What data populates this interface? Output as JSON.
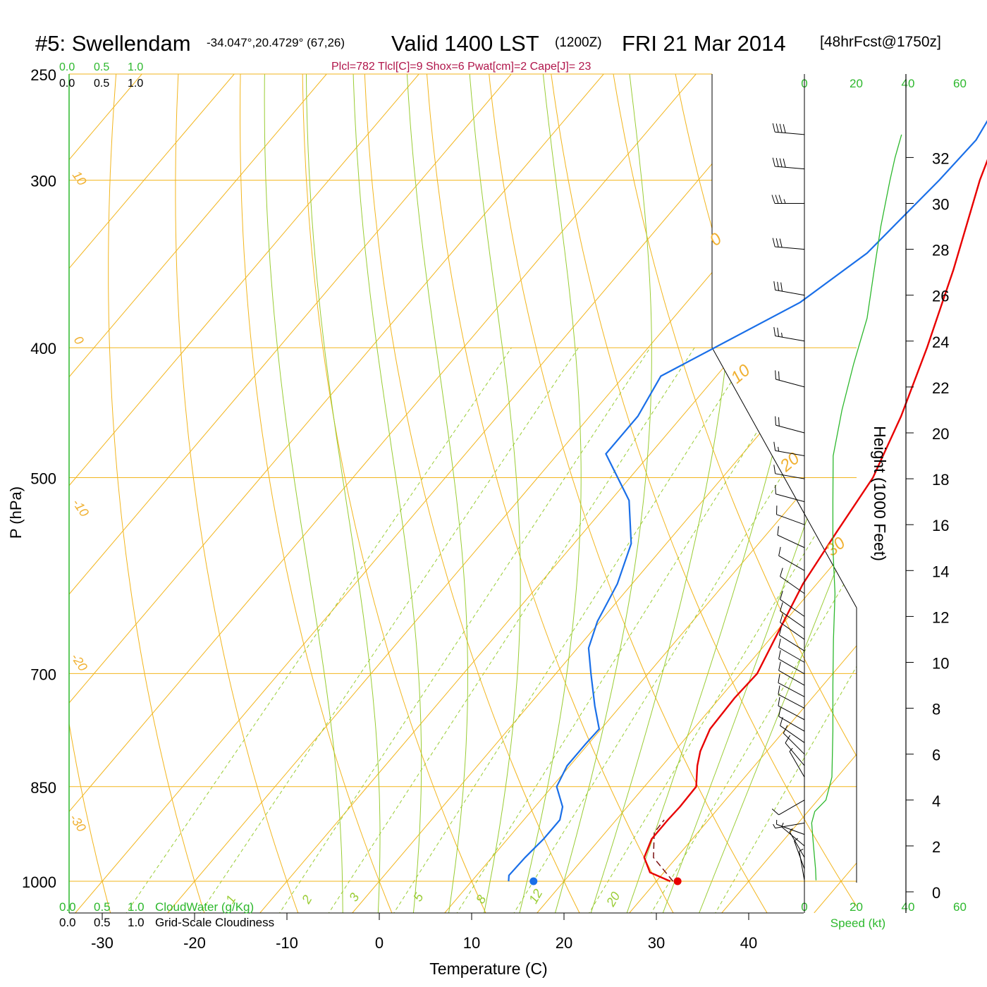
{
  "header": {
    "station": "#5: Swellendam",
    "coords": "-34.047°,20.4729° (67,26)",
    "valid": "Valid 1400 LST",
    "utc": "(1200Z)",
    "date": "FRI 21 Mar 2014",
    "fcst": "[48hrFcst@1750z]",
    "indices": "Plcl=782 Tlcl[C]=9 Shox=6 Pwat[cm]=2 Cape[J]= 23"
  },
  "colors": {
    "temperature": "#e80000",
    "dewpoint": "#1a6fe8",
    "parcel": "#7a1010",
    "isotherm": "#f2b51d",
    "dry_adiabat": "#f2b51d",
    "moist_adiabat": "#99cc33",
    "mixing_ratio": "#99cc33",
    "speed_profile": "#2db82d",
    "accent_green": "#2db82d"
  },
  "chart_data": {
    "type": "skew-t",
    "xlabel": "Temperature (C)",
    "ylabel": "P (hPa)",
    "xlim": [
      -34,
      36
    ],
    "ylim": [
      1000,
      250
    ],
    "x_ticks": [
      -30,
      -20,
      -10,
      0,
      10,
      20,
      30,
      40
    ],
    "y_ticks": [
      250,
      300,
      400,
      500,
      700,
      850,
      1000
    ],
    "isotherm_labels": [
      "10",
      "0",
      "-10",
      "-20",
      "-30"
    ],
    "dry_adiabat_labels": [
      "0",
      "10",
      "20",
      "30"
    ],
    "moist_adiabat_labels": [
      "8",
      "12",
      "20"
    ],
    "mixing_ratio_labels": [
      "1",
      "2",
      "3",
      "5"
    ],
    "mixing_ratio_lines": [
      1,
      2,
      3,
      5
    ],
    "moist_adiabat_lines": [
      8,
      12,
      20
    ],
    "temperature": {
      "name": "Temperature",
      "points": [
        [
          1000,
          31.5
        ],
        [
          985,
          28.5
        ],
        [
          960,
          26.5
        ],
        [
          930,
          25.6
        ],
        [
          900,
          25.6
        ],
        [
          880,
          25.7
        ],
        [
          850,
          25.6
        ],
        [
          820,
          23.8
        ],
        [
          800,
          22.8
        ],
        [
          770,
          21.8
        ],
        [
          730,
          21.6
        ],
        [
          700,
          21.8
        ],
        [
          650,
          20.2
        ],
        [
          600,
          18.5
        ],
        [
          550,
          17.4
        ],
        [
          500,
          16.3
        ],
        [
          450,
          13.7
        ],
        [
          400,
          10.2
        ],
        [
          350,
          5.9
        ],
        [
          300,
          0.5
        ],
        [
          270,
          -2.6
        ]
      ]
    },
    "dewpoint": {
      "name": "Dewpoint",
      "points": [
        [
          1000,
          14.0
        ],
        [
          990,
          13.5
        ],
        [
          960,
          13.6
        ],
        [
          930,
          13.9
        ],
        [
          900,
          13.9
        ],
        [
          880,
          13.0
        ],
        [
          850,
          10.5
        ],
        [
          820,
          9.7
        ],
        [
          790,
          9.7
        ],
        [
          770,
          9.8
        ],
        [
          740,
          7.2
        ],
        [
          700,
          3.8
        ],
        [
          670,
          1.2
        ],
        [
          640,
          -0.3
        ],
        [
          600,
          -1.6
        ],
        [
          560,
          -3.8
        ],
        [
          520,
          -8.0
        ],
        [
          480,
          -14.8
        ],
        [
          450,
          -14.8
        ],
        [
          420,
          -16.0
        ],
        [
          370,
          -7.7
        ],
        [
          340,
          -5.0
        ],
        [
          300,
          -3.9
        ],
        [
          280,
          -3.6
        ],
        [
          265,
          -4.5
        ]
      ]
    },
    "parcel": {
      "name": "Parcel",
      "points": [
        [
          1000,
          31.8
        ],
        [
          960,
          27.5
        ],
        [
          920,
          25.3
        ],
        [
          900,
          25.2
        ]
      ]
    },
    "surface_temperature": 32.3,
    "surface_dewpoint": 16.7,
    "cloud_axis": {
      "label_water": "CloudWater (g/Kg)",
      "label_cloudiness": "Grid-Scale Cloudiness",
      "ticks": [
        "0.0",
        "0.5",
        "1.0"
      ]
    },
    "wind_speed": {
      "xlabel": "Speed (kt)",
      "xlim": [
        0,
        60
      ],
      "x_ticks": [
        "0",
        "20",
        "40",
        "60"
      ],
      "height_label": "Height (1000 Feet)",
      "height_ticks": [
        0,
        2,
        4,
        6,
        8,
        10,
        12,
        14,
        16,
        18,
        20,
        22,
        24,
        26,
        28,
        30,
        32
      ],
      "profile": [
        [
          0.5,
          4.5
        ],
        [
          1,
          4.3
        ],
        [
          2,
          3.5
        ],
        [
          3,
          2.8
        ],
        [
          3.5,
          4.0
        ],
        [
          4,
          8.3
        ],
        [
          5,
          10.6
        ],
        [
          7,
          11.0
        ],
        [
          9,
          11.0
        ],
        [
          11,
          11.2
        ],
        [
          13,
          11.8
        ],
        [
          15,
          11.0
        ],
        [
          17,
          11.0
        ],
        [
          19,
          11.1
        ],
        [
          21,
          14.5
        ],
        [
          23,
          19.0
        ],
        [
          25,
          24.2
        ],
        [
          27,
          26.8
        ],
        [
          29,
          29.5
        ],
        [
          31,
          33.0
        ],
        [
          32,
          35.0
        ],
        [
          33,
          37.5
        ]
      ]
    },
    "wind_barbs": [
      {
        "h": 0.5,
        "dir": 350,
        "spd": 5
      },
      {
        "h": 1.0,
        "dir": 340,
        "spd": 5
      },
      {
        "h": 1.5,
        "dir": 330,
        "spd": 5
      },
      {
        "h": 2.0,
        "dir": 310,
        "spd": 5
      },
      {
        "h": 2.5,
        "dir": 290,
        "spd": 5
      },
      {
        "h": 3.0,
        "dir": 260,
        "spd": 5
      },
      {
        "h": 4.0,
        "dir": 240,
        "spd": 10
      },
      {
        "h": 5.0,
        "dir": 330,
        "spd": 5
      },
      {
        "h": 5.5,
        "dir": 320,
        "spd": 10
      },
      {
        "h": 6.0,
        "dir": 315,
        "spd": 10
      },
      {
        "h": 6.5,
        "dir": 305,
        "spd": 10
      },
      {
        "h": 7.0,
        "dir": 300,
        "spd": 10
      },
      {
        "h": 7.5,
        "dir": 298,
        "spd": 10
      },
      {
        "h": 8.0,
        "dir": 298,
        "spd": 10
      },
      {
        "h": 8.5,
        "dir": 298,
        "spd": 10
      },
      {
        "h": 9.0,
        "dir": 300,
        "spd": 10
      },
      {
        "h": 9.5,
        "dir": 300,
        "spd": 10
      },
      {
        "h": 10.0,
        "dir": 300,
        "spd": 10
      },
      {
        "h": 10.5,
        "dir": 302,
        "spd": 10
      },
      {
        "h": 11.0,
        "dir": 305,
        "spd": 10
      },
      {
        "h": 11.5,
        "dir": 305,
        "spd": 10
      },
      {
        "h": 12.0,
        "dir": 305,
        "spd": 10
      },
      {
        "h": 13.0,
        "dir": 305,
        "spd": 10
      },
      {
        "h": 14.0,
        "dir": 300,
        "spd": 10
      },
      {
        "h": 15.0,
        "dir": 295,
        "spd": 10
      },
      {
        "h": 16.0,
        "dir": 290,
        "spd": 10
      },
      {
        "h": 17.0,
        "dir": 285,
        "spd": 10
      },
      {
        "h": 18.0,
        "dir": 280,
        "spd": 10
      },
      {
        "h": 19.0,
        "dir": 280,
        "spd": 15
      },
      {
        "h": 20.0,
        "dir": 285,
        "spd": 20
      },
      {
        "h": 22.0,
        "dir": 285,
        "spd": 20
      },
      {
        "h": 24.0,
        "dir": 280,
        "spd": 25
      },
      {
        "h": 26.0,
        "dir": 280,
        "spd": 30
      },
      {
        "h": 28.0,
        "dir": 275,
        "spd": 30
      },
      {
        "h": 30.0,
        "dir": 270,
        "spd": 35
      },
      {
        "h": 31.5,
        "dir": 275,
        "spd": 40
      },
      {
        "h": 33.0,
        "dir": 275,
        "spd": 40
      }
    ]
  }
}
